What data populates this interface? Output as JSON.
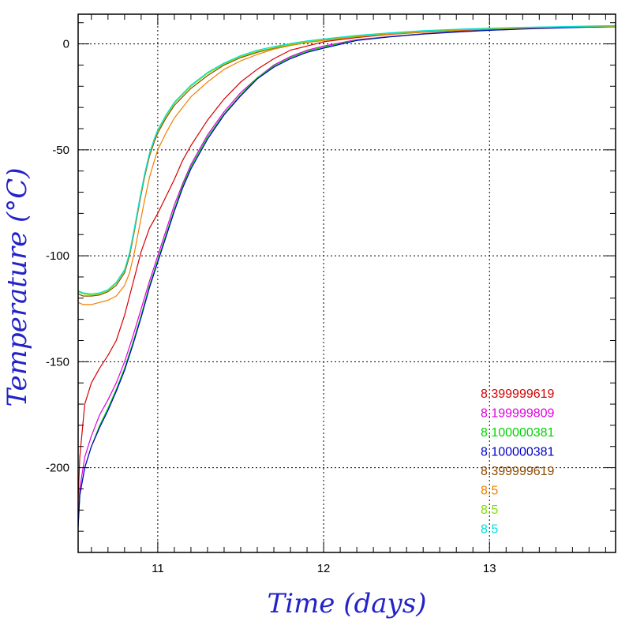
{
  "chart_data": {
    "type": "line",
    "title": "",
    "xlabel": "Time (days)",
    "ylabel": "Temperature (°C)",
    "xlim": [
      10.52,
      13.76
    ],
    "ylim": [
      -240,
      14
    ],
    "x_ticks": [
      11,
      12,
      13
    ],
    "y_ticks": [
      0,
      -50,
      -100,
      -150,
      -200
    ],
    "x_tick_labels": [
      "11",
      "12",
      "13"
    ],
    "y_tick_labels": [
      "0",
      "-50",
      "-100",
      "-150",
      "-200"
    ],
    "grid": true,
    "grid_style": "dotted",
    "legend_position": "lower-right",
    "series": [
      {
        "name": "8.399999619",
        "color": "#d40000",
        "x": [
          10.52,
          10.53,
          10.56,
          10.6,
          10.65,
          10.7,
          10.75,
          10.8,
          10.85,
          10.9,
          10.95,
          11.0,
          11.05,
          11.1,
          11.15,
          11.2,
          11.3,
          11.4,
          11.5,
          11.6,
          11.7,
          11.8,
          11.9,
          12.0,
          12.2,
          12.4,
          12.6,
          12.8,
          13.0,
          13.2,
          13.4,
          13.6,
          13.76
        ],
        "y": [
          -215,
          -195,
          -170,
          -160,
          -153,
          -147,
          -140,
          -128,
          -113,
          -98,
          -87,
          -80,
          -72,
          -64,
          -55,
          -48,
          -36,
          -26,
          -18,
          -12,
          -7,
          -3,
          -1,
          1,
          3,
          4.5,
          5.5,
          6.2,
          6.8,
          7.3,
          7.7,
          8.0,
          8.2
        ]
      },
      {
        "name": "8.199999809",
        "color": "#e000e0",
        "x": [
          10.52,
          10.53,
          10.56,
          10.6,
          10.65,
          10.7,
          10.75,
          10.8,
          10.85,
          10.9,
          10.95,
          11.0,
          11.05,
          11.1,
          11.15,
          11.2,
          11.3,
          11.4,
          11.5,
          11.6,
          11.7,
          11.8,
          11.9,
          12.0,
          12.2,
          12.4,
          12.6,
          12.8,
          13.0,
          13.2,
          13.4,
          13.6,
          13.76
        ],
        "y": [
          -225,
          -210,
          -195,
          -185,
          -175,
          -168,
          -160,
          -150,
          -138,
          -125,
          -112,
          -100,
          -88,
          -76,
          -66,
          -57,
          -43,
          -32,
          -23,
          -16,
          -10,
          -6,
          -3,
          -1,
          2,
          3.5,
          4.8,
          5.8,
          6.5,
          7.1,
          7.6,
          8.0,
          8.2
        ]
      },
      {
        "name": "8.100000381",
        "color": "#00d400",
        "x": [
          10.52,
          10.53,
          10.56,
          10.6,
          10.65,
          10.7,
          10.75,
          10.8,
          10.85,
          10.9,
          10.95,
          11.0,
          11.05,
          11.1,
          11.15,
          11.2,
          11.3,
          11.4,
          11.5,
          11.6,
          11.7,
          11.8,
          11.9,
          12.0,
          12.2,
          12.4,
          12.6,
          12.8,
          13.0,
          13.2,
          13.4,
          13.6,
          13.76
        ],
        "y": [
          -228,
          -213,
          -200,
          -190,
          -180,
          -172,
          -163,
          -153,
          -141,
          -128,
          -114,
          -102,
          -90,
          -78,
          -67,
          -58,
          -44,
          -33,
          -24,
          -16,
          -10.5,
          -6.5,
          -3.5,
          -1.5,
          1.8,
          3.4,
          4.7,
          5.7,
          6.5,
          7.1,
          7.6,
          8.0,
          8.2
        ]
      },
      {
        "name": "8.100000381",
        "color": "#0000c8",
        "x": [
          10.52,
          10.53,
          10.56,
          10.6,
          10.65,
          10.7,
          10.75,
          10.8,
          10.85,
          10.9,
          10.95,
          11.0,
          11.05,
          11.1,
          11.15,
          11.2,
          11.3,
          11.4,
          11.5,
          11.6,
          11.7,
          11.8,
          11.9,
          12.0,
          12.2,
          12.4,
          12.6,
          12.8,
          13.0,
          13.2,
          13.4,
          13.6,
          13.76
        ],
        "y": [
          -228,
          -213,
          -200,
          -190,
          -181,
          -173,
          -164,
          -154,
          -142,
          -129,
          -115,
          -103,
          -91,
          -79,
          -68,
          -59,
          -45,
          -33.5,
          -24.5,
          -16.5,
          -11,
          -7,
          -4,
          -2,
          1.6,
          3.3,
          4.6,
          5.6,
          6.4,
          7.0,
          7.5,
          7.9,
          8.1
        ]
      },
      {
        "name": "8.399999619",
        "color": "#8b4a00",
        "x": [
          10.52,
          10.55,
          10.6,
          10.65,
          10.7,
          10.75,
          10.8,
          10.83,
          10.86,
          10.89,
          10.92,
          10.95,
          10.98,
          11.0,
          11.05,
          11.1,
          11.2,
          11.3,
          11.4,
          11.5,
          11.6,
          11.7,
          11.8,
          11.9,
          12.0,
          12.2,
          12.4,
          12.6,
          12.8,
          13.0,
          13.2,
          13.4,
          13.6,
          13.76
        ],
        "y": [
          -118,
          -119,
          -119,
          -118.5,
          -117,
          -114,
          -108,
          -100,
          -88,
          -75,
          -63,
          -53,
          -46,
          -42,
          -35,
          -29,
          -21,
          -15,
          -10,
          -6.5,
          -4,
          -2,
          -0.5,
          0.8,
          1.8,
          3.5,
          4.8,
          5.8,
          6.5,
          7.0,
          7.5,
          7.9,
          8.2,
          8.3
        ]
      },
      {
        "name": "8.5",
        "color": "#f08000",
        "x": [
          10.52,
          10.55,
          10.6,
          10.65,
          10.7,
          10.75,
          10.8,
          10.83,
          10.86,
          10.89,
          10.92,
          10.95,
          10.98,
          11.0,
          11.05,
          11.1,
          11.2,
          11.3,
          11.4,
          11.5,
          11.6,
          11.7,
          11.8,
          11.9,
          12.0,
          12.2,
          12.4,
          12.6,
          12.8,
          13.0,
          13.2,
          13.4,
          13.6,
          13.76
        ],
        "y": [
          -122,
          -123,
          -123,
          -122,
          -121,
          -119,
          -114,
          -108,
          -98,
          -86,
          -74,
          -63,
          -55,
          -50,
          -42,
          -35,
          -25,
          -18,
          -12,
          -8,
          -5,
          -2.5,
          -0.8,
          0.6,
          1.6,
          3.3,
          4.6,
          5.6,
          6.4,
          7.0,
          7.5,
          7.9,
          8.2,
          8.3
        ]
      },
      {
        "name": "8.5",
        "color": "#7ee000",
        "x": [
          10.52,
          10.55,
          10.6,
          10.65,
          10.7,
          10.75,
          10.8,
          10.83,
          10.86,
          10.89,
          10.92,
          10.95,
          10.98,
          11.0,
          11.05,
          11.1,
          11.2,
          11.3,
          11.4,
          11.5,
          11.6,
          11.7,
          11.8,
          11.9,
          12.0,
          12.2,
          12.4,
          12.6,
          12.8,
          13.0,
          13.2,
          13.4,
          13.6,
          13.76
        ],
        "y": [
          -117,
          -118,
          -118.5,
          -118,
          -116.5,
          -113,
          -107,
          -99,
          -87,
          -74,
          -62,
          -52,
          -45,
          -41,
          -34,
          -28,
          -20,
          -14,
          -9.5,
          -6,
          -3.5,
          -1.8,
          -0.3,
          1.0,
          2.0,
          3.7,
          5.0,
          6.0,
          6.7,
          7.2,
          7.7,
          8.0,
          8.3,
          8.4
        ]
      },
      {
        "name": "8.5",
        "color": "#00e0e0",
        "x": [
          10.52,
          10.55,
          10.6,
          10.65,
          10.7,
          10.75,
          10.8,
          10.83,
          10.86,
          10.89,
          10.92,
          10.95,
          10.98,
          11.0,
          11.05,
          11.1,
          11.2,
          11.3,
          11.4,
          11.5,
          11.6,
          11.7,
          11.8,
          11.9,
          12.0,
          12.2,
          12.4,
          12.6,
          12.8,
          13.0,
          13.2,
          13.4,
          13.6,
          13.76
        ],
        "y": [
          -116.5,
          -117.5,
          -118,
          -117.5,
          -116,
          -112.5,
          -106.5,
          -98.5,
          -86.5,
          -73.5,
          -61.5,
          -51.5,
          -44.5,
          -40.5,
          -33.5,
          -27.5,
          -19.5,
          -13.5,
          -9,
          -5.5,
          -3,
          -1.3,
          0.2,
          1.4,
          2.3,
          4.0,
          5.2,
          6.2,
          6.9,
          7.4,
          7.8,
          8.1,
          8.4,
          8.6
        ]
      }
    ]
  }
}
